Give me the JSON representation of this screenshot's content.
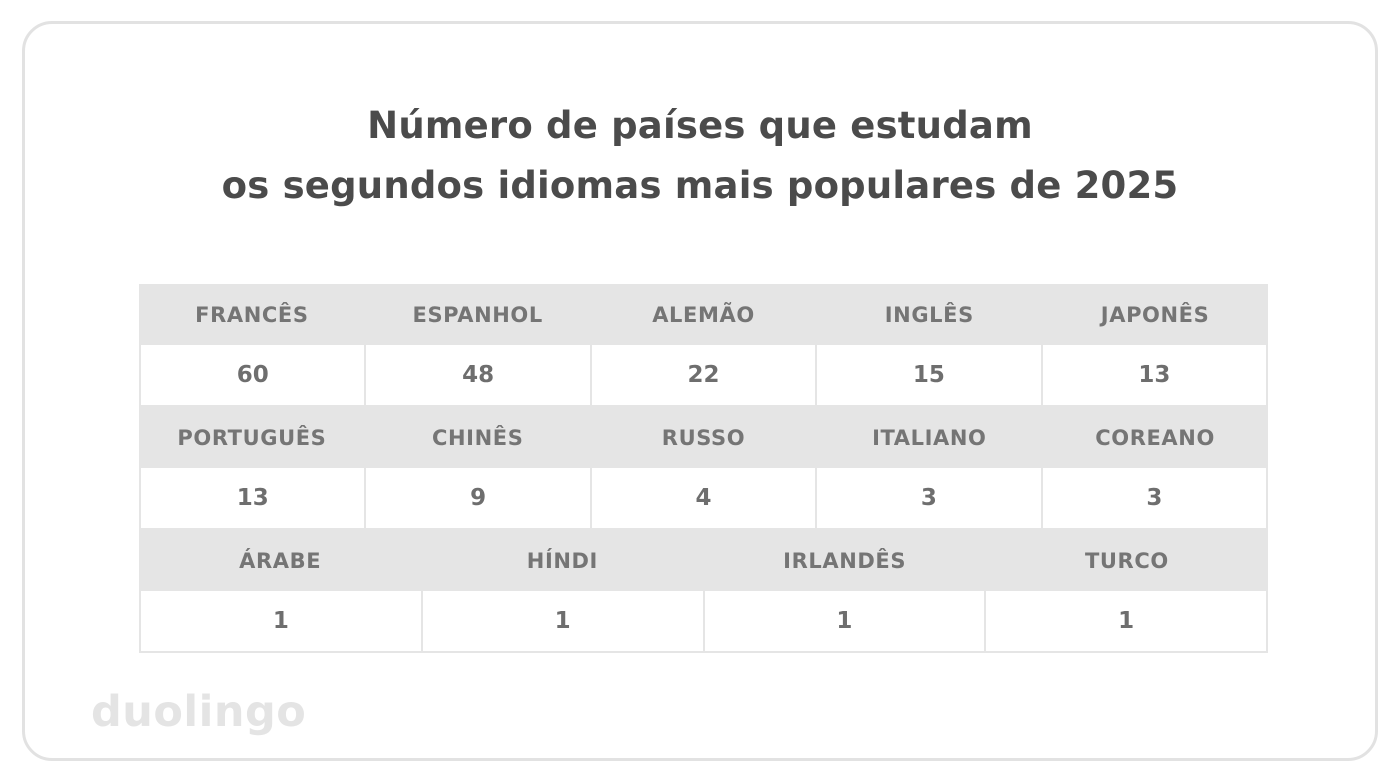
{
  "title": {
    "line1": "Número de países que estudam",
    "line2": "os segundos idiomas mais populares de 2025"
  },
  "table": {
    "groups": [
      {
        "headers": [
          "FRANCÊS",
          "ESPANHOL",
          "ALEMÃO",
          "INGLÊS",
          "JAPONÊS"
        ],
        "values": [
          "60",
          "48",
          "22",
          "15",
          "13"
        ]
      },
      {
        "headers": [
          "PORTUGUÊS",
          "CHINÊS",
          "RUSSO",
          "ITALIANO",
          "COREANO"
        ],
        "values": [
          "13",
          "9",
          "4",
          "3",
          "3"
        ]
      },
      {
        "headers": [
          "ÁRABE",
          "HÍNDI",
          "IRLANDÊS",
          "TURCO"
        ],
        "values": [
          "1",
          "1",
          "1",
          "1"
        ]
      }
    ]
  },
  "branding": {
    "wordmark": "duolingo"
  },
  "colors": {
    "card_border": "#e2e2e2",
    "header_row_bg": "#e5e5e5",
    "cell_border": "#e5e5e5",
    "title_text": "#4b4b4b",
    "header_text": "#757575",
    "value_text": "#6e6e6e",
    "wordmark_text": "#e4e4e4",
    "background": "#ffffff"
  },
  "chart_data": {
    "type": "table",
    "title": "Número de países que estudam os segundos idiomas mais populares de 2025",
    "categories": [
      "Francês",
      "Espanhol",
      "Alemão",
      "Inglês",
      "Japonês",
      "Português",
      "Chinês",
      "Russo",
      "Italiano",
      "Coreano",
      "Árabe",
      "Híndi",
      "Irlandês",
      "Turco"
    ],
    "values": [
      60,
      48,
      22,
      15,
      13,
      13,
      9,
      4,
      3,
      3,
      1,
      1,
      1,
      1
    ],
    "value_meaning": "Número de países"
  }
}
